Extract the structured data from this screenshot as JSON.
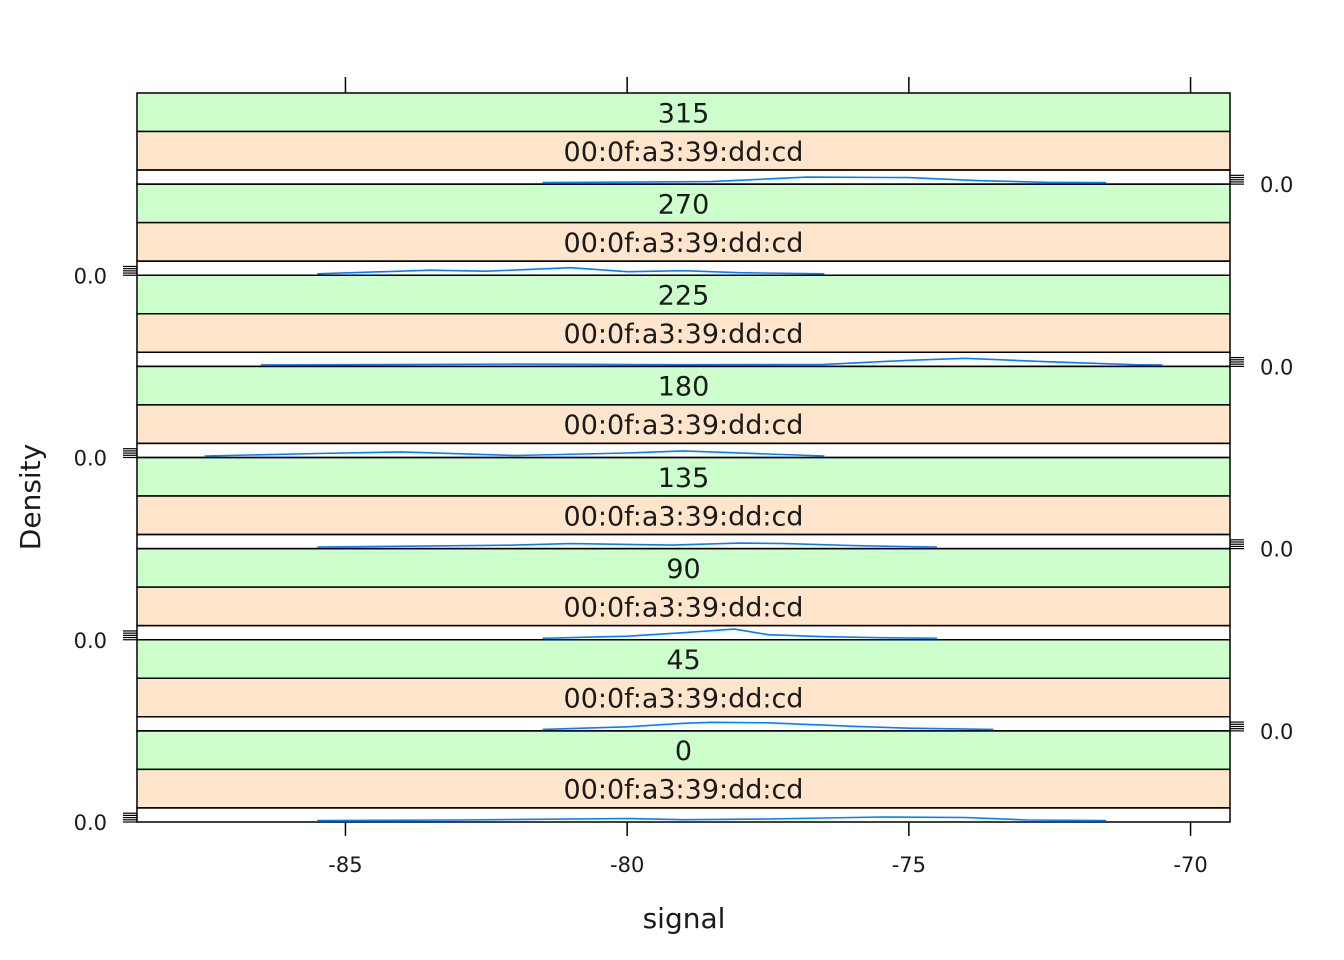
{
  "chart_data": {
    "type": "area",
    "subtype": "density",
    "layout": "lattice panels stacked vertically, two strips per panel",
    "xlabel": "signal",
    "ylabel": "Density",
    "xlim": [
      -88.7,
      -69.3
    ],
    "x_ticks": [
      -85,
      -80,
      -75,
      -70
    ],
    "x_tick_labels": [
      "-85",
      "-80",
      "-75",
      "-70"
    ],
    "y_tick_label": "0.0",
    "strip_colors": {
      "outer": "#ccffcc",
      "inner": "#ffe5cc"
    },
    "line_color": "#0080ff",
    "panels": [
      {
        "angle": "0",
        "mac": "00:0f:a3:39:dd:cd",
        "x": [
          -85.5,
          -83,
          -80,
          -79,
          -77.5,
          -75.5,
          -74,
          -72.9,
          -71.5
        ],
        "y": [
          0.0,
          0.05,
          0.2,
          0.08,
          0.15,
          0.35,
          0.3,
          0.05,
          0.0
        ]
      },
      {
        "angle": "45",
        "mac": "00:0f:a3:39:dd:cd",
        "x": [
          -81.5,
          -80,
          -79,
          -78.5,
          -77.5,
          -76,
          -75,
          -73.5
        ],
        "y": [
          0.0,
          0.25,
          0.6,
          0.7,
          0.65,
          0.3,
          0.12,
          0.0
        ]
      },
      {
        "angle": "90",
        "mac": "00:0f:a3:39:dd:cd",
        "x": [
          -81.5,
          -80,
          -79,
          -78.1,
          -77.5,
          -76.5,
          -75.5,
          -74.5
        ],
        "y": [
          0.0,
          0.2,
          0.55,
          0.9,
          0.35,
          0.15,
          0.05,
          0.0
        ]
      },
      {
        "angle": "135",
        "mac": "00:0f:a3:39:dd:cd",
        "x": [
          -85.5,
          -82,
          -81,
          -79.2,
          -78,
          -77.2,
          -76,
          -74.5
        ],
        "y": [
          0.0,
          0.2,
          0.35,
          0.2,
          0.4,
          0.35,
          0.15,
          0.0
        ]
      },
      {
        "angle": "180",
        "mac": "00:0f:a3:39:dd:cd",
        "x": [
          -87.5,
          -85.5,
          -84,
          -82,
          -80,
          -79,
          -77.5,
          -76.5
        ],
        "y": [
          0.0,
          0.25,
          0.4,
          0.05,
          0.3,
          0.5,
          0.2,
          0.0
        ]
      },
      {
        "angle": "225",
        "mac": "00:0f:a3:39:dd:cd",
        "x": [
          -86.5,
          -82,
          -79,
          -76.5,
          -75,
          -74,
          -72.5,
          -71,
          -70.5
        ],
        "y": [
          0.0,
          0.08,
          0.02,
          0.05,
          0.45,
          0.65,
          0.3,
          0.02,
          0.0
        ]
      },
      {
        "angle": "270",
        "mac": "00:0f:a3:39:dd:cd",
        "x": [
          -85.5,
          -83.5,
          -82.5,
          -81,
          -80,
          -79,
          -78,
          -76.5
        ],
        "y": [
          0.0,
          0.35,
          0.25,
          0.6,
          0.2,
          0.3,
          0.1,
          0.0
        ]
      },
      {
        "angle": "315",
        "mac": "00:0f:a3:39:dd:cd",
        "x": [
          -81.5,
          -78.5,
          -76.8,
          -75,
          -73.8,
          -72.5,
          -71.5
        ],
        "y": [
          0.0,
          0.1,
          0.55,
          0.5,
          0.2,
          0.02,
          0.0
        ]
      }
    ]
  }
}
